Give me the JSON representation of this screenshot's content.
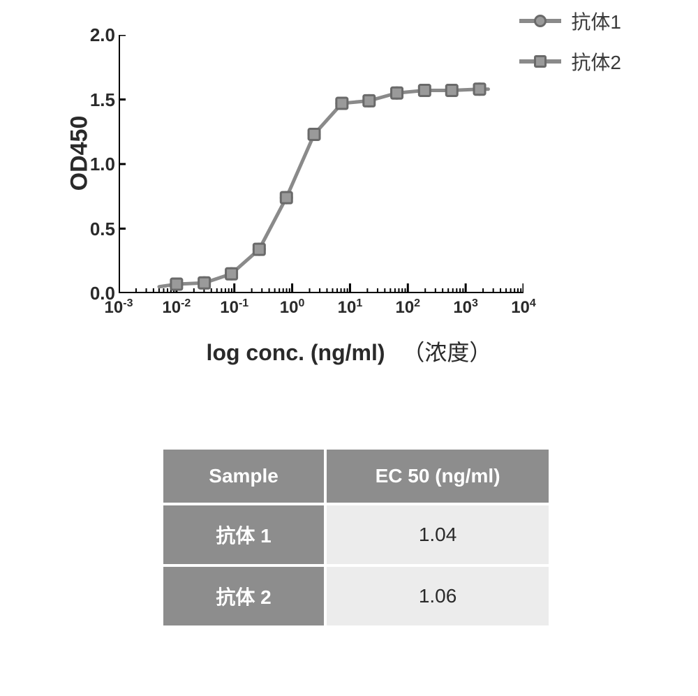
{
  "chart": {
    "type": "line",
    "ylabel": "OD450",
    "xlabel": "log conc. (ng/ml)",
    "xlabel_cn": "（浓度）",
    "xscale": "log",
    "ylim": [
      0.0,
      2.0
    ],
    "ytick_step": 0.5,
    "yticks": [
      0.0,
      0.5,
      1.0,
      1.5,
      2.0
    ],
    "ytick_labels": [
      "0.0",
      "0.5",
      "1.0",
      "1.5",
      "2.0"
    ],
    "xlim_exp": [
      -3,
      4
    ],
    "xticks_exp": [
      -3,
      -2,
      -1,
      0,
      1,
      2,
      3,
      4
    ],
    "label_fontsize": 32,
    "tick_fontsize": 26,
    "line_color": "#8a8a8a",
    "line_width": 5,
    "marker_size": 16,
    "marker_border": "#6a6a6a",
    "marker_fill": "#9a9a9a",
    "background_color": "#ffffff",
    "axis_color": "#000000",
    "series": [
      {
        "name": "抗体1",
        "marker": "circle",
        "x_exp": [
          -2.0,
          -1.52,
          -1.05,
          -0.57,
          -0.1,
          0.38,
          0.86,
          1.33,
          1.81,
          2.29,
          2.76,
          3.24
        ],
        "y": [
          0.07,
          0.08,
          0.15,
          0.34,
          0.74,
          1.23,
          1.47,
          1.49,
          1.55,
          1.57,
          1.57,
          1.58
        ]
      },
      {
        "name": "抗体2",
        "marker": "square",
        "x_exp": [
          -2.0,
          -1.52,
          -1.05,
          -0.57,
          -0.1,
          0.38,
          0.86,
          1.33,
          1.81,
          2.29,
          2.76,
          3.24
        ],
        "y": [
          0.07,
          0.08,
          0.15,
          0.34,
          0.74,
          1.23,
          1.47,
          1.49,
          1.55,
          1.57,
          1.57,
          1.58
        ]
      }
    ],
    "legend": {
      "position": "top-right",
      "items": [
        {
          "label": "抗体1",
          "marker": "circle"
        },
        {
          "label": "抗体2",
          "marker": "square"
        }
      ]
    }
  },
  "table": {
    "columns": [
      "Sample",
      "EC 50 (ng/ml)"
    ],
    "rows": [
      [
        "抗体 1",
        "1.04"
      ],
      [
        "抗体 2",
        "1.06"
      ]
    ],
    "header_bg": "#8d8d8d",
    "header_fg": "#ffffff",
    "label_bg": "#8d8d8d",
    "value_bg": "#ececec",
    "font_size": 28
  }
}
